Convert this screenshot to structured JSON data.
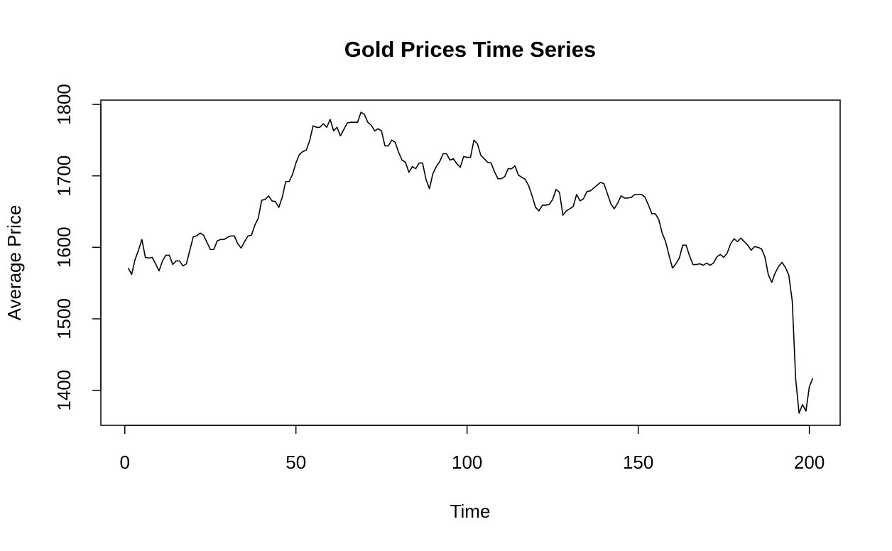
{
  "chart_data": {
    "type": "line",
    "title": "Gold Prices Time Series",
    "x_label": "Time",
    "y_label": "Average Price",
    "x": [
      1,
      2,
      3,
      4,
      5,
      6,
      7,
      8,
      9,
      10,
      11,
      12,
      13,
      14,
      15,
      16,
      17,
      18,
      19,
      20,
      21,
      22,
      23,
      24,
      25,
      26,
      27,
      28,
      29,
      30,
      31,
      32,
      33,
      34,
      35,
      36,
      37,
      38,
      39,
      40,
      41,
      42,
      43,
      44,
      45,
      46,
      47,
      48,
      49,
      50,
      51,
      52,
      53,
      54,
      55,
      56,
      57,
      58,
      59,
      60,
      61,
      62,
      63,
      64,
      65,
      66,
      67,
      68,
      69,
      70,
      71,
      72,
      73,
      74,
      75,
      76,
      77,
      78,
      79,
      80,
      81,
      82,
      83,
      84,
      85,
      86,
      87,
      88,
      89,
      90,
      91,
      92,
      93,
      94,
      95,
      96,
      97,
      98,
      99,
      100,
      101,
      102,
      103,
      104,
      105,
      106,
      107,
      108,
      109,
      110,
      111,
      112,
      113,
      114,
      115,
      116,
      117,
      118,
      119,
      120,
      121,
      122,
      123,
      124,
      125,
      126,
      127,
      128,
      129,
      130,
      131,
      132,
      133,
      134,
      135,
      136,
      137,
      138,
      139,
      140,
      141,
      142,
      143,
      144,
      145,
      146,
      147,
      148,
      149,
      150,
      151,
      152,
      153,
      154,
      155,
      156,
      157,
      158,
      159,
      160,
      161,
      162,
      163,
      164,
      165,
      166,
      167,
      168,
      169,
      170,
      171,
      172,
      173,
      174,
      175,
      176,
      177,
      178,
      179,
      180,
      181,
      182,
      183,
      184,
      185,
      186,
      187,
      188,
      189,
      190,
      191,
      192,
      193,
      194,
      195,
      196,
      197,
      198,
      199,
      200,
      201
    ],
    "values": [
      1571,
      1562,
      1583,
      1596,
      1611,
      1586,
      1585,
      1586,
      1577,
      1567,
      1581,
      1589,
      1589,
      1576,
      1581,
      1581,
      1574,
      1577,
      1596,
      1615,
      1616,
      1620,
      1617,
      1607,
      1597,
      1597,
      1609,
      1611,
      1611,
      1614,
      1616,
      1616,
      1605,
      1599,
      1608,
      1616,
      1617,
      1631,
      1641,
      1666,
      1667,
      1672,
      1665,
      1664,
      1656,
      1670,
      1692,
      1692,
      1702,
      1718,
      1730,
      1734,
      1736,
      1749,
      1770,
      1768,
      1768,
      1773,
      1768,
      1779,
      1763,
      1768,
      1756,
      1765,
      1774,
      1775,
      1775,
      1775,
      1789,
      1786,
      1775,
      1771,
      1763,
      1766,
      1763,
      1742,
      1742,
      1750,
      1747,
      1733,
      1722,
      1719,
      1705,
      1713,
      1710,
      1718,
      1718,
      1695,
      1682,
      1703,
      1713,
      1720,
      1731,
      1731,
      1722,
      1724,
      1717,
      1712,
      1727,
      1726,
      1726,
      1750,
      1745,
      1729,
      1724,
      1719,
      1718,
      1706,
      1696,
      1696,
      1699,
      1710,
      1710,
      1714,
      1701,
      1698,
      1695,
      1686,
      1672,
      1656,
      1651,
      1659,
      1659,
      1660,
      1667,
      1681,
      1677,
      1645,
      1651,
      1654,
      1657,
      1674,
      1665,
      1668,
      1678,
      1679,
      1683,
      1687,
      1691,
      1689,
      1675,
      1661,
      1654,
      1662,
      1672,
      1669,
      1669,
      1670,
      1674,
      1674,
      1674,
      1670,
      1659,
      1647,
      1647,
      1639,
      1620,
      1608,
      1589,
      1571,
      1577,
      1585,
      1603,
      1603,
      1588,
      1576,
      1576,
      1577,
      1575,
      1578,
      1575,
      1578,
      1587,
      1590,
      1586,
      1592,
      1605,
      1612,
      1608,
      1613,
      1608,
      1603,
      1596,
      1601,
      1600,
      1598,
      1587,
      1562,
      1551,
      1564,
      1573,
      1579,
      1572,
      1561,
      1525,
      1416,
      1368,
      1380,
      1371,
      1405,
      1417
    ],
    "color": "#000000",
    "xlim": [
      -7,
      209
    ],
    "xticks": [
      0,
      50,
      100,
      150,
      200
    ],
    "ylim": [
      1351,
      1806
    ],
    "yticks": [
      1400,
      1500,
      1600,
      1700,
      1800
    ]
  }
}
